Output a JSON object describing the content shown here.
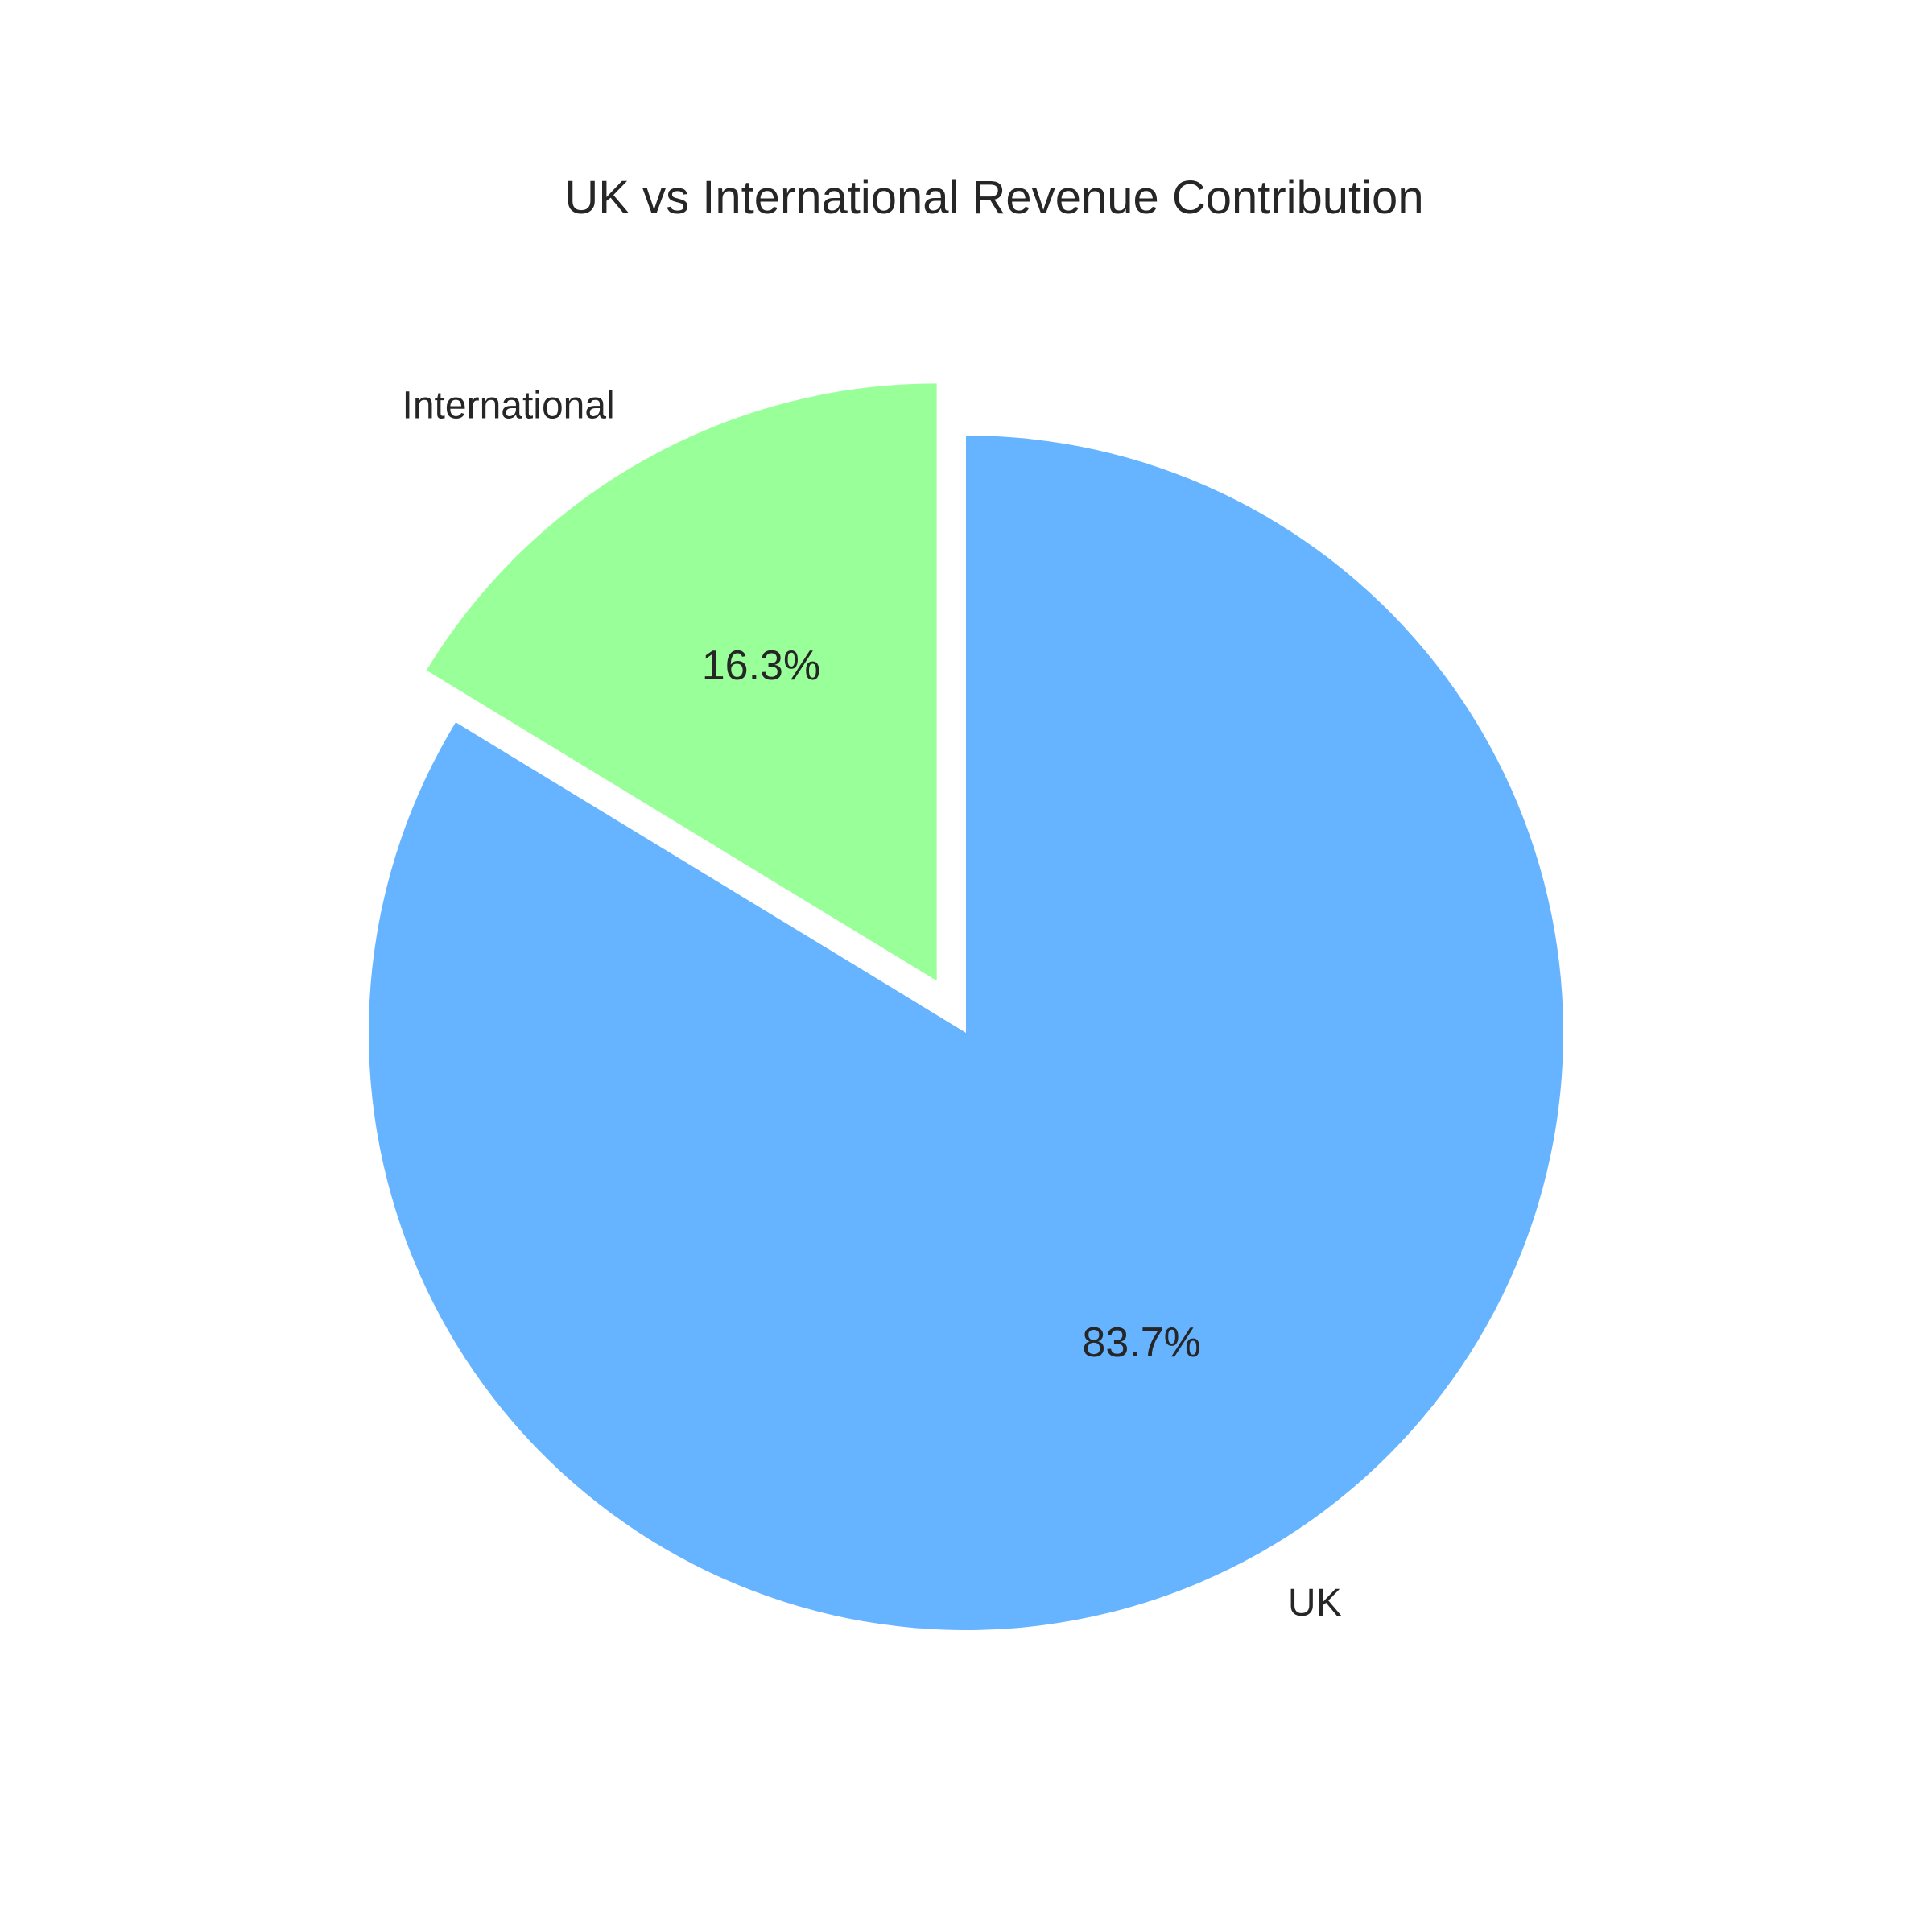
{
  "chart_data": {
    "type": "pie",
    "title": "UK vs International Revenue Contribution",
    "start_angle_deg": 90,
    "direction": "clockwise",
    "slices": [
      {
        "label": "UK",
        "value": 83.7,
        "pct_label": "83.7%",
        "color": "#66b3ff",
        "exploded": false
      },
      {
        "label": "International",
        "value": 16.3,
        "pct_label": "16.3%",
        "color": "#99ff99",
        "exploded": true
      }
    ]
  }
}
